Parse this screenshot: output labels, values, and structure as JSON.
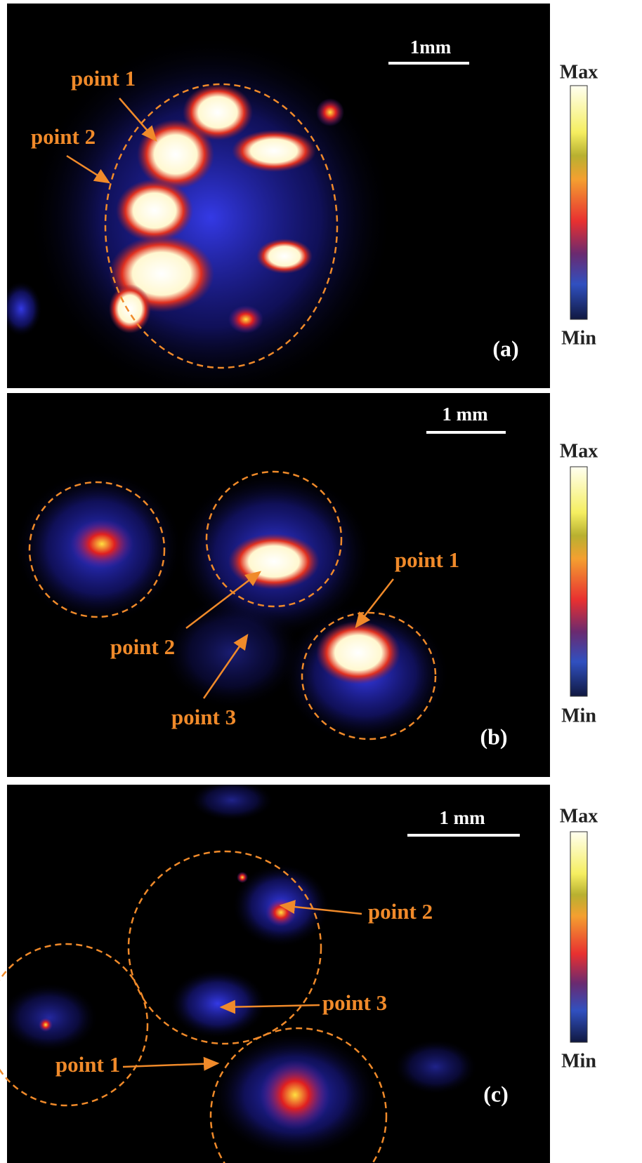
{
  "panels": [
    {
      "label": "(a)",
      "scale_bar": "1mm",
      "colorbar": {
        "max": "Max",
        "min": "Min"
      },
      "annotations": [
        "point 1",
        "point 2"
      ]
    },
    {
      "label": "(b)",
      "scale_bar": "1 mm",
      "colorbar": {
        "max": "Max",
        "min": "Min"
      },
      "annotations": [
        "point 1",
        "point 2",
        "point 3"
      ]
    },
    {
      "label": "(c)",
      "scale_bar": "1 mm",
      "colorbar": {
        "max": "Max",
        "min": "Min"
      },
      "annotations": [
        "point 2",
        "point 3",
        "point 1"
      ]
    }
  ]
}
